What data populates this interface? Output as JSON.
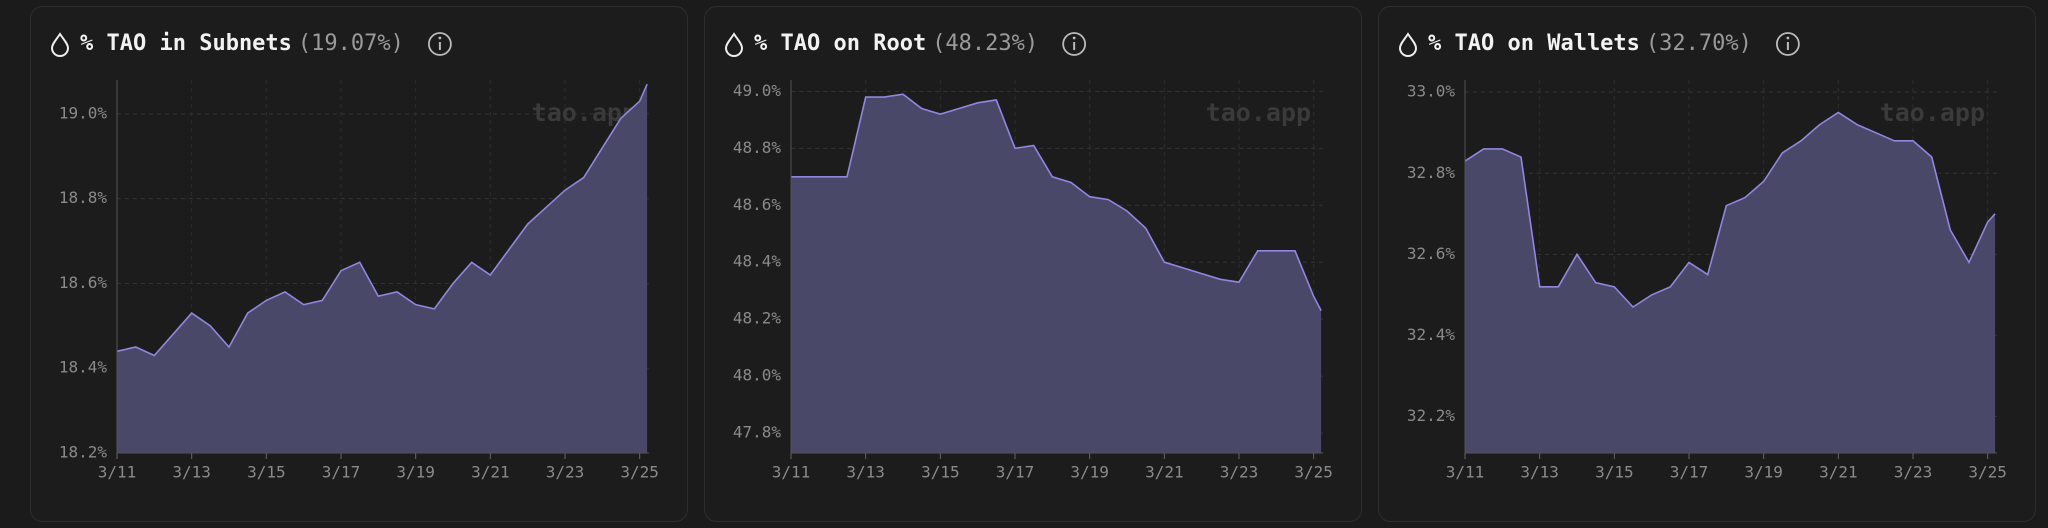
{
  "chart_data": [
    {
      "type": "area",
      "title": "% TAO in Subnets",
      "subtitle": "(19.07%)",
      "watermark": "tao.app",
      "x": [
        11,
        11.5,
        12,
        12.5,
        13,
        13.5,
        14,
        14.5,
        15,
        15.5,
        16,
        16.5,
        17,
        17.5,
        18,
        18.5,
        19,
        19.5,
        20,
        20.5,
        21,
        21.5,
        22,
        22.5,
        23,
        23.5,
        24,
        24.5,
        25,
        25.2
      ],
      "values": [
        18.44,
        18.45,
        18.43,
        18.48,
        18.53,
        18.5,
        18.45,
        18.53,
        18.56,
        18.58,
        18.55,
        18.56,
        18.63,
        18.65,
        18.57,
        18.58,
        18.55,
        18.54,
        18.6,
        18.65,
        18.62,
        18.68,
        18.74,
        18.78,
        18.82,
        18.85,
        18.92,
        18.99,
        19.03,
        19.07
      ],
      "color": "#8f87e0",
      "fill": "#4a4868",
      "xlim": [
        11,
        25.25
      ],
      "ylim": [
        18.2,
        19.08
      ],
      "xticks": [
        {
          "value": 11,
          "label": "3/11"
        },
        {
          "value": 13,
          "label": "3/13"
        },
        {
          "value": 15,
          "label": "3/15"
        },
        {
          "value": 17,
          "label": "3/17"
        },
        {
          "value": 19,
          "label": "3/19"
        },
        {
          "value": 21,
          "label": "3/21"
        },
        {
          "value": 23,
          "label": "3/23"
        },
        {
          "value": 25,
          "label": "3/25"
        }
      ],
      "yticks": [
        {
          "value": 18.2,
          "label": "18.2%"
        },
        {
          "value": 18.4,
          "label": "18.4%"
        },
        {
          "value": 18.6,
          "label": "18.6%"
        },
        {
          "value": 18.8,
          "label": "18.8%"
        },
        {
          "value": 19.0,
          "label": "19.0%"
        }
      ],
      "grid": true
    },
    {
      "type": "area",
      "title": "% TAO on Root",
      "subtitle": "(48.23%)",
      "watermark": "tao.app",
      "x": [
        11,
        11.5,
        12,
        12.5,
        13,
        13.5,
        14,
        14.5,
        15,
        15.5,
        16,
        16.5,
        17,
        17.5,
        18,
        18.5,
        19,
        19.5,
        20,
        20.5,
        21,
        21.5,
        22,
        22.5,
        23,
        23.5,
        24,
        24.5,
        25,
        25.2
      ],
      "values": [
        48.7,
        48.7,
        48.7,
        48.7,
        48.98,
        48.98,
        48.99,
        48.94,
        48.92,
        48.94,
        48.96,
        48.97,
        48.8,
        48.81,
        48.7,
        48.68,
        48.63,
        48.62,
        48.58,
        48.52,
        48.4,
        48.38,
        48.36,
        48.34,
        48.33,
        48.44,
        48.44,
        48.44,
        48.28,
        48.23
      ],
      "color": "#8f87e0",
      "fill": "#4a4868",
      "xlim": [
        11,
        25.25
      ],
      "ylim": [
        47.73,
        49.04
      ],
      "xticks": [
        {
          "value": 11,
          "label": "3/11"
        },
        {
          "value": 13,
          "label": "3/13"
        },
        {
          "value": 15,
          "label": "3/15"
        },
        {
          "value": 17,
          "label": "3/17"
        },
        {
          "value": 19,
          "label": "3/19"
        },
        {
          "value": 21,
          "label": "3/21"
        },
        {
          "value": 23,
          "label": "3/23"
        },
        {
          "value": 25,
          "label": "3/25"
        }
      ],
      "yticks": [
        {
          "value": 47.8,
          "label": "47.8%"
        },
        {
          "value": 48.0,
          "label": "48.0%"
        },
        {
          "value": 48.2,
          "label": "48.2%"
        },
        {
          "value": 48.4,
          "label": "48.4%"
        },
        {
          "value": 48.6,
          "label": "48.6%"
        },
        {
          "value": 48.8,
          "label": "48.8%"
        },
        {
          "value": 49.0,
          "label": "49.0%"
        }
      ],
      "grid": true
    },
    {
      "type": "area",
      "title": "% TAO on Wallets",
      "subtitle": "(32.70%)",
      "watermark": "tao.app",
      "x": [
        11,
        11.5,
        12,
        12.5,
        13,
        13.5,
        14,
        14.5,
        15,
        15.5,
        16,
        16.5,
        17,
        17.5,
        18,
        18.5,
        19,
        19.5,
        20,
        20.5,
        21,
        21.5,
        22,
        22.5,
        23,
        23.5,
        24,
        24.5,
        25,
        25.2
      ],
      "values": [
        32.83,
        32.86,
        32.86,
        32.84,
        32.52,
        32.52,
        32.6,
        32.53,
        32.52,
        32.47,
        32.5,
        32.52,
        32.58,
        32.55,
        32.72,
        32.74,
        32.78,
        32.85,
        32.88,
        32.92,
        32.95,
        32.92,
        32.9,
        32.88,
        32.88,
        32.84,
        32.66,
        32.58,
        32.68,
        32.7
      ],
      "color": "#8f87e0",
      "fill": "#4a4868",
      "xlim": [
        11,
        25.25
      ],
      "ylim": [
        32.11,
        33.03
      ],
      "xticks": [
        {
          "value": 11,
          "label": "3/11"
        },
        {
          "value": 13,
          "label": "3/13"
        },
        {
          "value": 15,
          "label": "3/15"
        },
        {
          "value": 17,
          "label": "3/17"
        },
        {
          "value": 19,
          "label": "3/19"
        },
        {
          "value": 21,
          "label": "3/21"
        },
        {
          "value": 23,
          "label": "3/23"
        },
        {
          "value": 25,
          "label": "3/25"
        }
      ],
      "yticks": [
        {
          "value": 32.2,
          "label": "32.2%"
        },
        {
          "value": 32.4,
          "label": "32.4%"
        },
        {
          "value": 32.6,
          "label": "32.6%"
        },
        {
          "value": 32.8,
          "label": "32.8%"
        },
        {
          "value": 33.0,
          "label": "33.0%"
        }
      ],
      "grid": true
    }
  ]
}
